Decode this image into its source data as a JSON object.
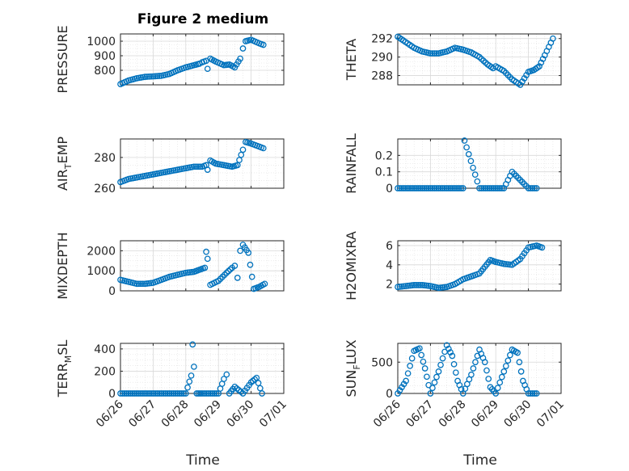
{
  "figure": {
    "title": "Figure 2 medium",
    "xlabel": "Time",
    "marker_color": "#0072BD",
    "grid": true,
    "minor_grid": true
  },
  "x_ticks": [
    "06/26",
    "06/27",
    "06/28",
    "06/29",
    "06/30",
    "07/01"
  ],
  "chart_data": [
    {
      "type": "scatter",
      "ylabel": "PRESSURE",
      "ylim": [
        700,
        1050
      ],
      "yticks": [
        "800",
        "900",
        "1000"
      ],
      "x": [
        "06/26 00:00",
        "06/26 06:00",
        "06/26 12:00",
        "06/26 18:00",
        "06/27 00:00",
        "06/27 06:00",
        "06/27 12:00",
        "06/27 18:00",
        "06/28 00:00",
        "06/28 06:00",
        "06/28 10:00",
        "06/28 12:00",
        "06/28 15:00",
        "06/28 16:00",
        "06/28 18:00",
        "06/28 22:00",
        "06/29 04:00",
        "06/29 08:00",
        "06/29 12:00",
        "06/29 16:00",
        "06/29 18:00",
        "06/29 20:00",
        "06/30 00:00",
        "06/30 06:00",
        "06/30 09:00"
      ],
      "y": [
        705,
        730,
        745,
        755,
        758,
        762,
        775,
        800,
        820,
        835,
        845,
        855,
        865,
        810,
        880,
        860,
        835,
        840,
        820,
        880,
        950,
        1000,
        1010,
        985,
        975
      ]
    },
    {
      "type": "scatter",
      "ylabel": "THETA",
      "ylim": [
        287,
        292.5
      ],
      "yticks": [
        "288",
        "290",
        "292"
      ],
      "x": [
        "06/26 00:00",
        "06/26 04:00",
        "06/26 12:00",
        "06/26 18:00",
        "06/27 00:00",
        "06/27 06:00",
        "06/27 12:00",
        "06/27 18:00",
        "06/28 00:00",
        "06/28 06:00",
        "06/28 12:00",
        "06/28 18:00",
        "06/28 22:00",
        "06/29 00:00",
        "06/29 06:00",
        "06/29 12:00",
        "06/29 18:00",
        "06/30 00:00",
        "06/30 04:00",
        "06/30 08:00",
        "06/30 12:00",
        "06/30 18:00"
      ],
      "y": [
        292.2,
        291.8,
        291.0,
        290.6,
        290.4,
        290.4,
        290.6,
        291.0,
        290.8,
        290.5,
        290.0,
        289.2,
        288.8,
        289.0,
        288.5,
        287.6,
        287.0,
        288.4,
        288.6,
        289.0,
        290.2,
        292.0
      ]
    },
    {
      "type": "scatter",
      "ylabel": "AIR",
      "ylabel_sub": "T",
      "ylabel_tail": "EMP",
      "ylim": [
        260,
        292
      ],
      "yticks": [
        "260",
        "280"
      ],
      "x": [
        "06/26 00:00",
        "06/26 06:00",
        "06/26 12:00",
        "06/26 18:00",
        "06/27 00:00",
        "06/27 06:00",
        "06/27 12:00",
        "06/27 18:00",
        "06/28 00:00",
        "06/28 06:00",
        "06/28 12:00",
        "06/28 15:00",
        "06/28 16:00",
        "06/28 18:00",
        "06/28 22:00",
        "06/29 04:00",
        "06/29 10:00",
        "06/29 14:00",
        "06/29 18:00",
        "06/29 20:00",
        "06/30 00:00",
        "06/30 06:00",
        "06/30 09:00"
      ],
      "y": [
        264,
        266,
        267,
        268,
        269,
        270,
        271,
        272,
        273,
        274,
        274,
        275,
        272,
        278,
        276,
        275,
        274,
        275,
        285,
        290,
        289,
        287,
        286
      ]
    },
    {
      "type": "scatter",
      "ylabel": "RAINFALL",
      "ylim": [
        0,
        0.3
      ],
      "yticks": [
        "0",
        "0.1",
        "0.2"
      ],
      "x": [
        "06/26 00:00",
        "06/26 12:00",
        "06/27 00:00",
        "06/27 12:00",
        "06/28 00:00",
        "06/28 01:00",
        "06/28 12:00",
        "06/29 00:00",
        "06/29 06:00",
        "06/29 12:00",
        "06/30 00:00",
        "06/30 06:00"
      ],
      "y": [
        0,
        0,
        0,
        0,
        0,
        0.29,
        0,
        0,
        0,
        0.1,
        0,
        0
      ]
    },
    {
      "type": "scatter",
      "ylabel": "MIXDEPTH",
      "ylim": [
        0,
        2500
      ],
      "yticks": [
        "0",
        "1000",
        "2000"
      ],
      "x": [
        "06/26 00:00",
        "06/26 06:00",
        "06/26 12:00",
        "06/26 18:00",
        "06/27 00:00",
        "06/27 06:00",
        "06/27 12:00",
        "06/27 18:00",
        "06/28 00:00",
        "06/28 06:00",
        "06/28 10:00",
        "06/28 14:00",
        "06/28 15:00",
        "06/28 16:00",
        "06/28 18:00",
        "06/29 00:00",
        "06/29 06:00",
        "06/29 10:00",
        "06/29 12:00",
        "06/29 14:00",
        "06/29 16:00",
        "06/29 18:00",
        "06/29 22:00",
        "06/30 02:00",
        "06/30 06:00",
        "06/30 10:00"
      ],
      "y": [
        550,
        450,
        350,
        350,
        400,
        550,
        700,
        800,
        900,
        950,
        1050,
        1150,
        1950,
        1600,
        300,
        500,
        900,
        1150,
        1250,
        650,
        2000,
        2300,
        1900,
        100,
        200,
        350
      ]
    },
    {
      "type": "scatter",
      "ylabel": "H2OMIXRA",
      "ylim": [
        1.3,
        6.5
      ],
      "yticks": [
        "2",
        "4",
        "6"
      ],
      "x": [
        "06/26 00:00",
        "06/26 06:00",
        "06/26 12:00",
        "06/26 18:00",
        "06/27 00:00",
        "06/27 06:00",
        "06/27 12:00",
        "06/27 18:00",
        "06/28 00:00",
        "06/28 06:00",
        "06/28 12:00",
        "06/28 16:00",
        "06/28 20:00",
        "06/29 00:00",
        "06/29 06:00",
        "06/29 12:00",
        "06/29 18:00",
        "06/30 00:00",
        "06/30 06:00",
        "06/30 10:00"
      ],
      "y": [
        1.7,
        1.8,
        1.9,
        1.9,
        1.8,
        1.6,
        1.7,
        2.0,
        2.5,
        2.8,
        3.1,
        3.8,
        4.5,
        4.3,
        4.1,
        4.0,
        4.6,
        5.8,
        6.0,
        5.8
      ]
    },
    {
      "type": "scatter",
      "ylabel": "TERR",
      "ylabel_sub": "M",
      "ylabel_tail": "SL",
      "ylim": [
        0,
        450
      ],
      "yticks": [
        "0",
        "200",
        "400"
      ],
      "x": [
        "06/26 00:00",
        "06/26 12:00",
        "06/27 00:00",
        "06/27 12:00",
        "06/28 00:00",
        "06/28 04:00",
        "06/28 05:00",
        "06/28 06:00",
        "06/28 08:00",
        "06/28 12:00",
        "06/29 00:00",
        "06/29 04:00",
        "06/29 06:00",
        "06/29 08:00",
        "06/29 12:00",
        "06/29 18:00",
        "06/30 00:00",
        "06/30 04:00",
        "06/30 08:00"
      ],
      "y": [
        0,
        0,
        0,
        0,
        0,
        160,
        440,
        240,
        0,
        0,
        0,
        130,
        170,
        0,
        60,
        0,
        100,
        140,
        0
      ]
    },
    {
      "type": "scatter",
      "ylabel": "SUN",
      "ylabel_sub": "F",
      "ylabel_tail": "LUX",
      "ylim": [
        0,
        800
      ],
      "yticks": [
        "0",
        "500"
      ],
      "x": [
        "06/26 00:00",
        "06/26 06:00",
        "06/26 12:00",
        "06/26 16:00",
        "06/26 20:00",
        "06/27 00:00",
        "06/27 06:00",
        "06/27 12:00",
        "06/27 16:00",
        "06/27 20:00",
        "06/28 00:00",
        "06/28 06:00",
        "06/28 12:00",
        "06/28 16:00",
        "06/28 20:00",
        "06/29 00:00",
        "06/29 06:00",
        "06/29 12:00",
        "06/29 16:00",
        "06/29 20:00",
        "06/30 00:00",
        "06/30 06:00"
      ],
      "y": [
        0,
        200,
        680,
        720,
        400,
        0,
        350,
        770,
        600,
        200,
        0,
        300,
        700,
        500,
        100,
        0,
        350,
        700,
        650,
        200,
        0,
        0
      ]
    }
  ]
}
